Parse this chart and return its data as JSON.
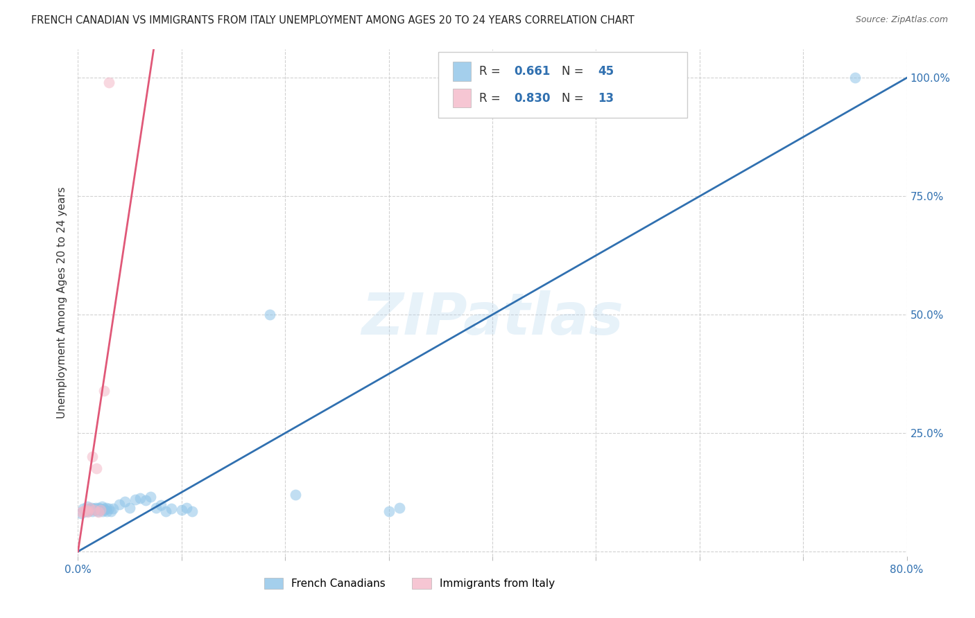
{
  "title": "FRENCH CANADIAN VS IMMIGRANTS FROM ITALY UNEMPLOYMENT AMONG AGES 20 TO 24 YEARS CORRELATION CHART",
  "source": "Source: ZipAtlas.com",
  "ylabel": "Unemployment Among Ages 20 to 24 years",
  "watermark": "ZIPatlas",
  "xlim": [
    0.0,
    0.8
  ],
  "ylim": [
    -0.01,
    1.06
  ],
  "blue_color": "#8ec4e8",
  "pink_color": "#f4b8c8",
  "blue_line_color": "#3070b0",
  "pink_line_color": "#e05878",
  "R_blue": "0.661",
  "N_blue": "45",
  "R_pink": "0.830",
  "N_pink": "13",
  "legend_label_blue": "French Canadians",
  "legend_label_pink": "Immigrants from Italy",
  "blue_line_x": [
    0.0,
    0.8
  ],
  "blue_line_y": [
    0.0,
    1.0
  ],
  "pink_line_x": [
    0.0,
    0.073
  ],
  "pink_line_y": [
    0.0,
    1.06
  ],
  "blue_scatter_x": [
    0.003,
    0.005,
    0.007,
    0.009,
    0.01,
    0.011,
    0.012,
    0.013,
    0.014,
    0.015,
    0.016,
    0.017,
    0.018,
    0.019,
    0.02,
    0.021,
    0.022,
    0.023,
    0.024,
    0.025,
    0.026,
    0.027,
    0.028,
    0.03,
    0.032,
    0.034,
    0.04,
    0.045,
    0.05,
    0.055,
    0.06,
    0.065,
    0.07,
    0.075,
    0.08,
    0.085,
    0.09,
    0.1,
    0.105,
    0.11,
    0.185,
    0.21,
    0.3,
    0.31,
    0.75
  ],
  "blue_scatter_y": [
    0.08,
    0.09,
    0.085,
    0.095,
    0.085,
    0.09,
    0.088,
    0.092,
    0.085,
    0.09,
    0.088,
    0.092,
    0.088,
    0.085,
    0.092,
    0.09,
    0.088,
    0.095,
    0.085,
    0.09,
    0.088,
    0.092,
    0.085,
    0.09,
    0.085,
    0.09,
    0.1,
    0.105,
    0.092,
    0.11,
    0.112,
    0.108,
    0.115,
    0.092,
    0.098,
    0.085,
    0.09,
    0.088,
    0.092,
    0.085,
    0.5,
    0.12,
    0.085,
    0.092,
    1.0
  ],
  "pink_scatter_x": [
    0.003,
    0.005,
    0.007,
    0.009,
    0.01,
    0.011,
    0.014,
    0.016,
    0.018,
    0.02,
    0.022,
    0.025,
    0.03
  ],
  "pink_scatter_y": [
    0.083,
    0.085,
    0.088,
    0.083,
    0.086,
    0.092,
    0.2,
    0.088,
    0.175,
    0.083,
    0.088,
    0.34,
    0.99
  ]
}
